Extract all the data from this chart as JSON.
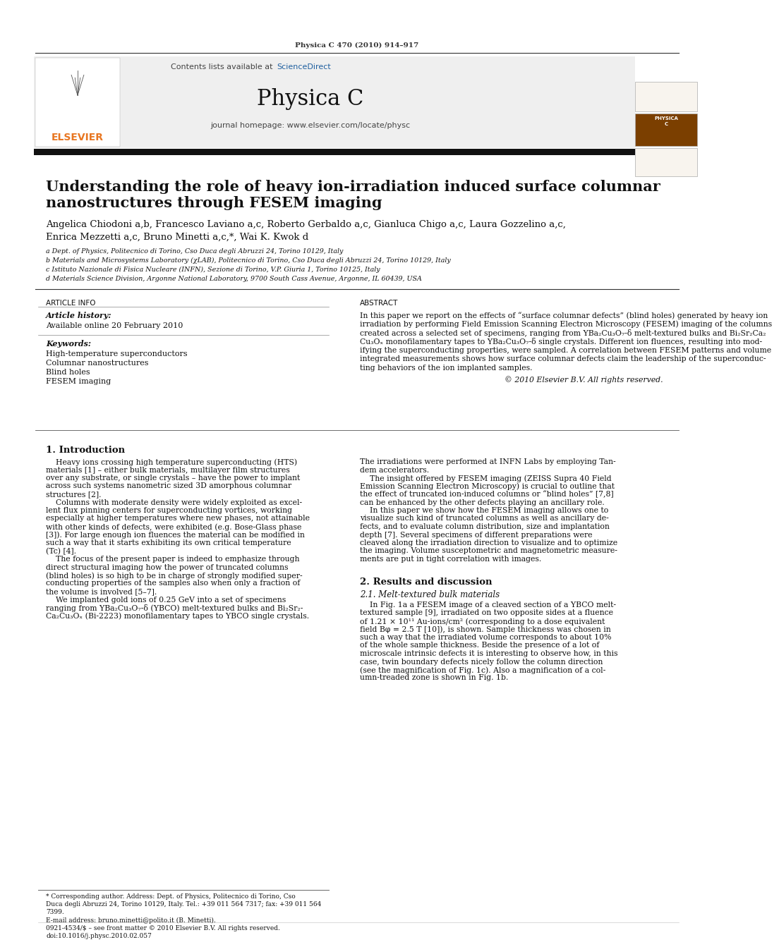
{
  "journal_ref": "Physica C 470 (2010) 914–917",
  "contents_line": "Contents lists available at ",
  "science_direct": "ScienceDirect",
  "journal_name": "Physica C",
  "journal_homepage": "journal homepage: www.elsevier.com/locate/physc",
  "title_line1": "Understanding the role of heavy ion-irradiation induced surface columnar",
  "title_line2": "nanostructures through FESEM imaging",
  "authors": "Angelica Chiodoni a,b, Francesco Laviano a,c, Roberto Gerbaldo a,c, Gianluca Chigo a,c, Laura Gozzelino a,c,",
  "authors2": "Enrica Mezzetti a,c, Bruno Minetti a,c,*, Wai K. Kwok d",
  "affil_a": "a Dept. of Physics, Politecnico di Torino, Cso Duca degli Abruzzi 24, Torino 10129, Italy",
  "affil_b": "b Materials and Microsystems Laboratory (χLAB), Politecnico di Torino, Cso Duca degli Abruzzi 24, Torino 10129, Italy",
  "affil_c": "c Istituto Nazionale di Fisica Nucleare (INFN), Sezione di Torino, V.P. Giuria 1, Torino 10125, Italy",
  "affil_d": "d Materials Science Division, Argonne National Laboratory, 9700 South Cass Avenue, Argonne, IL 60439, USA",
  "article_info_header": "ARTICLE INFO",
  "abstract_header": "ABSTRACT",
  "article_history_label": "Article history:",
  "available_online": "Available online 20 February 2010",
  "keywords_label": "Keywords:",
  "keyword1": "High-temperature superconductors",
  "keyword2": "Columnar nanostructures",
  "keyword3": "Blind holes",
  "keyword4": "FESEM imaging",
  "abstract_text1": "In this paper we report on the effects of “surface columnar defects” (blind holes) generated by heavy ion",
  "abstract_text2": "irradiation by performing Field Emission Scanning Electron Microscopy (FESEM) imaging of the columns",
  "abstract_text3": "created across a selected set of specimens, ranging from YBa₂Cu₃O₇-δ melt-textured bulks and Bi₂Sr₂Ca₂",
  "abstract_text4": "Cu₃Oₓ monofilamentary tapes to YBa₂Cu₃O₇-δ single crystals. Different ion fluences, resulting into mod-",
  "abstract_text5": "ifying the superconducting properties, were sampled. A correlation between FESEM patterns and volume",
  "abstract_text6": "integrated measurements shows how surface columnar defects claim the leadership of the superconduc-",
  "abstract_text7": "ting behaviors of the ion implanted samples.",
  "copyright": "© 2010 Elsevier B.V. All rights reserved.",
  "intro_header": "1. Introduction",
  "intro_col1_l1": "    Heavy ions crossing high temperature superconducting (HTS)",
  "intro_col1_l2": "materials [1] – either bulk materials, multilayer film structures",
  "intro_col1_l3": "over any substrate, or single crystals – have the power to implant",
  "intro_col1_l4": "across such systems nanometric sized 3D amorphous columnar",
  "intro_col1_l5": "structures [2].",
  "intro_col1_l6": "    Columns with moderate density were widely exploited as excel-",
  "intro_col1_l7": "lent flux pinning centers for superconducting vortices, working",
  "intro_col1_l8": "especially at higher temperatures where new phases, not attainable",
  "intro_col1_l9": "with other kinds of defects, were exhibited (e.g. Bose-Glass phase",
  "intro_col1_l10": "[3]). For large enough ion fluences the material can be modified in",
  "intro_col1_l11": "such a way that it starts exhibiting its own critical temperature",
  "intro_col1_l12": "(Tc) [4].",
  "intro_col1_l13": "    The focus of the present paper is indeed to emphasize through",
  "intro_col1_l14": "direct structural imaging how the power of truncated columns",
  "intro_col1_l15": "(blind holes) is so high to be in charge of strongly modified super-",
  "intro_col1_l16": "conducting properties of the samples also when only a fraction of",
  "intro_col1_l17": "the volume is involved [5–7].",
  "intro_col1_l18": "    We implanted gold ions of 0.25 GeV into a set of specimens",
  "intro_col1_l19": "ranging from YBa₂Cu₃O₇-δ (YBCO) melt-textured bulks and Bi₂Sr₂-",
  "intro_col1_l20": "Ca₂Cu₃Oₓ (Bi-2223) monofilamentary tapes to YBCO single crystals.",
  "intro_col2_l1": "The irradiations were performed at INFN Labs by employing Tan-",
  "intro_col2_l2": "dem accelerators.",
  "intro_col2_l3": "    The insight offered by FESEM imaging (ZEISS Supra 40 Field",
  "intro_col2_l4": "Emission Scanning Electron Microscopy) is crucial to outline that",
  "intro_col2_l5": "the effect of truncated ion-induced columns or “blind holes” [7,8]",
  "intro_col2_l6": "can be enhanced by the other defects playing an ancillary role.",
  "intro_col2_l7": "    In this paper we show how the FESEM imaging allows one to",
  "intro_col2_l8": "visualize such kind of truncated columns as well as ancillary de-",
  "intro_col2_l9": "fects, and to evaluate column distribution, size and implantation",
  "intro_col2_l10": "depth [7]. Several specimens of different preparations were",
  "intro_col2_l11": "cleaved along the irradiation direction to visualize and to optimize",
  "intro_col2_l12": "the imaging. Volume susceptometric and magnetometric measure-",
  "intro_col2_l13": "ments are put in tight correlation with images.",
  "results_header": "2. Results and discussion",
  "results_sub": "2.1. Melt-textured bulk materials",
  "res_col2_l1": "    In Fig. 1a a FESEM image of a cleaved section of a YBCO melt-",
  "res_col2_l2": "textured sample [9], irradiated on two opposite sides at a fluence",
  "res_col2_l3": "of 1.21 × 10¹¹ Au-ions/cm² (corresponding to a dose equivalent",
  "res_col2_l4": "field Bφ = 2.5 T [10]), is shown. Sample thickness was chosen in",
  "res_col2_l5": "such a way that the irradiated volume corresponds to about 10%",
  "res_col2_l6": "of the whole sample thickness. Beside the presence of a lot of",
  "res_col2_l7": "microscale intrinsic defects it is interesting to observe how, in this",
  "res_col2_l8": "case, twin boundary defects nicely follow the column direction",
  "res_col2_l9": "(see the magnification of Fig. 1c). Also a magnification of a col-",
  "res_col2_l10": "umn-treaded zone is shown in Fig. 1b.",
  "footnote_star": "* Corresponding author. Address: Dept. of Physics, Politecnico di Torino, Cso",
  "footnote_star2": "Duca degli Abruzzi 24, Torino 10129, Italy. Tel.: +39 011 564 7317; fax: +39 011 564",
  "footnote_star3": "7399.",
  "footnote_email": "E-mail address: bruno.minetti@polito.it (B. Minetti).",
  "issn_line": "0921-4534/$ – see front matter © 2010 Elsevier B.V. All rights reserved.",
  "doi_line": "doi:10.1016/j.physc.2010.02.057",
  "bg_header": "#efefef",
  "color_elsevier": "#e87722",
  "color_sciencedirect": "#2060a0",
  "color_black": "#000000",
  "color_dark_gray": "#222222",
  "color_blue_ref": "#2060a0"
}
